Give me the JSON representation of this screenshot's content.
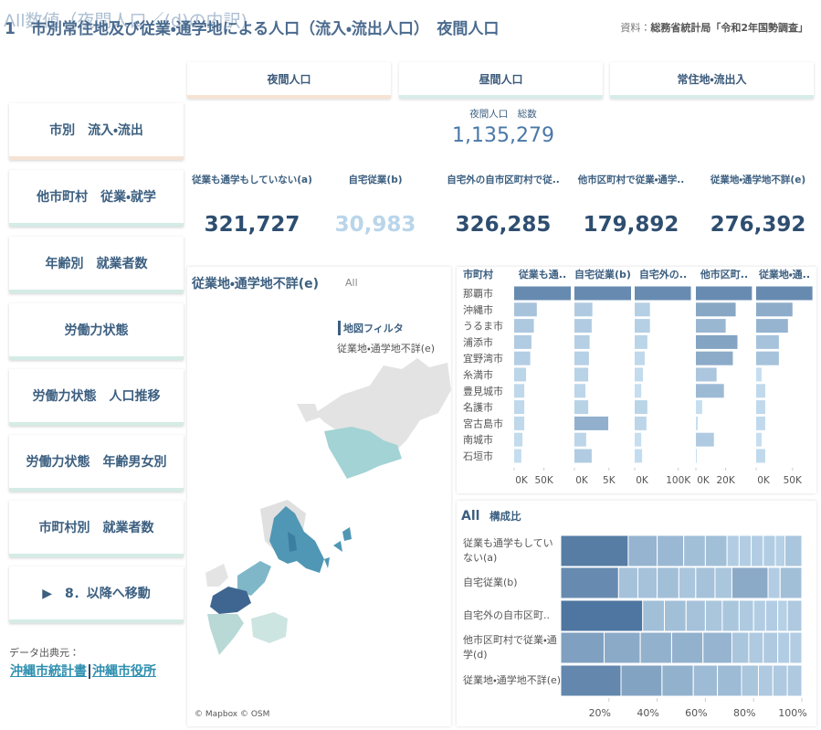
{
  "header": {
    "overlay": "All数値（夜間人口／(d)の内訳)",
    "title": "1　市別常住地及び従業・通学地による人口（流入・流出人口）　夜間人口",
    "source_label": "資料：",
    "source": "総務省統計局「令和2年国勢調査」"
  },
  "tabs": [
    "夜間人口",
    "昼間人口",
    "常住地・流出入"
  ],
  "nav": [
    "市別　流入・流出",
    "他市町村　従業・就学",
    "年齢別　就業者数",
    "労働力状態",
    "労働力状態　人口推移",
    "労働力状態　年齢男女別",
    "市町村別　就業者数",
    "▶　8．以降へ移動"
  ],
  "footer": {
    "label": "データ出典元：",
    "links": [
      "沖縄市統計書",
      "沖縄市役所"
    ]
  },
  "kpi": {
    "total_label": "夜間人口　総数",
    "total": "1,135,279",
    "items": [
      {
        "label": "従業も通学もしていない(a)",
        "value": "321,727"
      },
      {
        "label": "自宅従業(b)",
        "value": "30,983"
      },
      {
        "label": "自宅外の自市区町村で従..",
        "value": "326,285"
      },
      {
        "label": "他市区町村で従業・通学..",
        "value": "179,892"
      },
      {
        "label": "従業地・通学地不詳(e)",
        "value": "276,392"
      }
    ]
  },
  "map": {
    "title": "従業地・通学地不詳(e)",
    "filter_tag": "All",
    "legend_title": "地図フィルタ",
    "legend_item": "従業地・通学地不詳(e)",
    "credit": "© Mapbox © OSM"
  },
  "chart_data": [
    {
      "type": "bar",
      "row_header": "市町村",
      "categories": [
        "那覇市",
        "沖縄市",
        "うるま市",
        "浦添市",
        "宜野湾市",
        "糸満市",
        "豊見城市",
        "名護市",
        "宮古島市",
        "南城市",
        "石垣市"
      ],
      "series": [
        {
          "name": "従業も通..",
          "values": [
            95000,
            38000,
            33000,
            29000,
            27000,
            20000,
            17000,
            17000,
            17000,
            14000,
            12000
          ],
          "xlim": [
            0,
            95000
          ],
          "xticks": [
            {
              "value": 0,
              "label": "0K"
            },
            {
              "value": 50000,
              "label": "50K"
            }
          ]
        },
        {
          "name": "自宅従業(b)",
          "values": [
            8200,
            2600,
            2500,
            2200,
            2100,
            2000,
            1600,
            2000,
            4900,
            1700,
            2500
          ],
          "xlim": [
            0,
            8200
          ],
          "xticks": [
            {
              "value": 0,
              "label": "0K"
            },
            {
              "value": 5000,
              "label": "5K"
            }
          ]
        },
        {
          "name": "自宅外の..",
          "values": [
            129000,
            35000,
            35000,
            29000,
            23000,
            19000,
            15000,
            29000,
            27000,
            15000,
            17000
          ],
          "xlim": [
            0,
            130000
          ],
          "xticks": [
            {
              "value": 0,
              "label": "0K"
            },
            {
              "value": 100000,
              "label": "100K"
            }
          ]
        },
        {
          "name": "他市区町..",
          "values": [
            37600,
            26700,
            20000,
            27900,
            24800,
            13900,
            18800,
            4200,
            1200,
            12100,
            600
          ],
          "xlim": [
            0,
            38000
          ],
          "xticks": [
            {
              "value": 0,
              "label": "0K"
            },
            {
              "value": 20000,
              "label": "20K"
            }
          ]
        },
        {
          "name": "従業地・通..",
          "values": [
            77500,
            50000,
            43800,
            31300,
            31300,
            7500,
            12500,
            12500,
            12500,
            7500,
            12500
          ],
          "xlim": [
            0,
            78000
          ],
          "xticks": [
            {
              "value": 0,
              "label": "0K"
            },
            {
              "value": 50000,
              "label": "50K"
            }
          ]
        }
      ]
    },
    {
      "type": "stacked-bar-100",
      "filter_tag": "All",
      "title": "構成比",
      "categories": [
        "従業も通学もしていない(a)",
        "自宅従業(b)",
        "自宅外の自市区町..",
        "他市区町村で従業・通学(d)",
        "従業地・通学地不詳(e)"
      ],
      "segments": [
        [
          28,
          12,
          11,
          9,
          9,
          5,
          5,
          5,
          5,
          4,
          7
        ],
        [
          24,
          8,
          8,
          9,
          7,
          8,
          7,
          15,
          5,
          9
        ],
        [
          34,
          9,
          9,
          8,
          7,
          7,
          6,
          5,
          5,
          4,
          6
        ],
        [
          18,
          15,
          13,
          13,
          12,
          7,
          6,
          6,
          5,
          5
        ],
        [
          25,
          17,
          13,
          10,
          10,
          7,
          6,
          6,
          6
        ]
      ],
      "xlim": [
        0,
        100
      ],
      "xticks": [
        {
          "value": 20,
          "label": "20%"
        },
        {
          "value": 40,
          "label": "40%"
        },
        {
          "value": 60,
          "label": "60%"
        },
        {
          "value": 80,
          "label": "80%"
        },
        {
          "value": 100,
          "label": "100%"
        }
      ]
    }
  ]
}
